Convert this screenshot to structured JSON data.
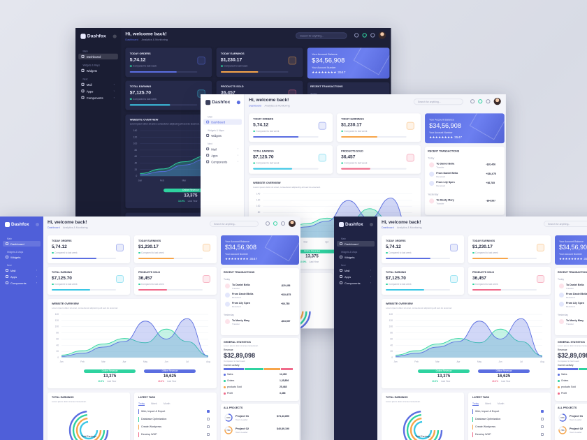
{
  "header": {
    "brand": "Dashfox",
    "welcome": "Hi, welcome back!",
    "breadcrumb": [
      "Dashboard",
      "Analytics & Monitoring"
    ],
    "search": "Search for anything..."
  },
  "sidebar": [
    {
      "section": "Main",
      "items": [
        "Dashboard"
      ]
    },
    {
      "section": "Widgets & Maps",
      "items": [
        "Widgets"
      ]
    },
    {
      "section": "Next",
      "items": [
        "Mail",
        "Apps",
        "Components"
      ]
    }
  ],
  "stats": {
    "note": "Compared to last week",
    "cards": [
      {
        "label": "TODAY ORDERS",
        "value": "5,74.12",
        "color": "#5b6ee1",
        "progress": 70
      },
      {
        "label": "TODAY EARNINGS",
        "value": "$1,230.17",
        "color": "#f7a54a",
        "progress": 55
      },
      {
        "label": "TOTAL EARNING",
        "value": "$7,125.70",
        "color": "#3bc7e6",
        "progress": 60
      },
      {
        "label": "PRODUCTS SOLD",
        "value": "36,457",
        "color": "#f06a8a",
        "progress": 45
      }
    ]
  },
  "balance": {
    "label": "Your Account Balance",
    "amount": "$34,56,908",
    "number_label": "Your Account Number",
    "number": "★★★★★★★★ 3547"
  },
  "transactions": {
    "title": "RECENT TRANSACTIONS",
    "groups": [
      {
        "name": "Today",
        "items": [
          {
            "name": "To Daniel Bella",
            "sub": "Transfer",
            "amount": "-$20,456"
          },
          {
            "name": "From Daniel Bella",
            "sub": "Received",
            "amount": "+$34,675"
          },
          {
            "name": "From Lily Spen",
            "sub": "Received",
            "amount": "+$6,785"
          }
        ]
      },
      {
        "name": "Yesterday",
        "items": [
          {
            "name": "To Monty Mary",
            "sub": "Transfer",
            "amount": "-$64,567"
          }
        ]
      }
    ]
  },
  "chart_data": {
    "type": "area",
    "title": "WEBSITE OVERVIEW",
    "subtitle": "Lorem ipsum dolor sit amet, consectetur adipiscing elit sed do eiusmod.",
    "categories": [
      "Jan",
      "Feb",
      "Mar",
      "Apr",
      "May",
      "Jun",
      "Jul",
      "Aug"
    ],
    "series": [
      {
        "name": "Online Revenue",
        "color": "#2fd3a0",
        "values": [
          8,
          22,
          44,
          62,
          48,
          92,
          52,
          6
        ]
      },
      {
        "name": "Offline Revenue",
        "color": "#5b6ee1",
        "values": [
          4,
          14,
          34,
          52,
          118,
          60,
          126,
          4
        ]
      }
    ],
    "ylim": [
      0,
      140
    ],
    "yticks": [
      0,
      20,
      40,
      60,
      80,
      100,
      120,
      140
    ],
    "totals": [
      "13,375",
      "16,625"
    ],
    "changes": [
      "10.9%",
      "40.3%"
    ],
    "period": "Last Year"
  },
  "general": {
    "title": "GENERAL STATISTICS",
    "subtitle": "Lorem ipsum dolor sit amet consectetur.",
    "revenue_label": "Revenue",
    "revenue": "$32,89,098",
    "note": "Compared to last week",
    "activity": "Current activity",
    "rows": [
      {
        "label": "Sales",
        "value": "12,450",
        "color": "#5b6ee1"
      },
      {
        "label": "Orders",
        "value": "1,35,856",
        "color": "#2fd3a0"
      },
      {
        "label": "products Sold",
        "value": "25,468",
        "color": "#f7a54a"
      },
      {
        "label": "Profit",
        "value": "3,466",
        "color": "#f06a8a"
      }
    ]
  },
  "earnings": {
    "title": "TOTAL EARNINGS",
    "subtitle": "Lorem ipsum dolor sit amet consectetur.",
    "center": "Total Earnings"
  },
  "tasks": {
    "title": "LATEST TASK",
    "tabs": [
      "Today",
      "Week",
      "Month"
    ],
    "items": [
      "Web, Import & Export",
      "Database Optimization",
      "Create Wordpress",
      "Develop WHP"
    ]
  },
  "projects": {
    "title": "ALL PROJECTS",
    "names": [
      "Project 01",
      "Project 02"
    ],
    "subs": [
      "Team Leader",
      "Team Leader"
    ],
    "amounts": [
      "$74,43,890",
      "$40,89,190"
    ],
    "values": [
      63,
      78
    ],
    "value_labels": [
      "63%",
      "78%"
    ],
    "colors": [
      "#5b6ee1",
      "#f7a54a"
    ]
  }
}
